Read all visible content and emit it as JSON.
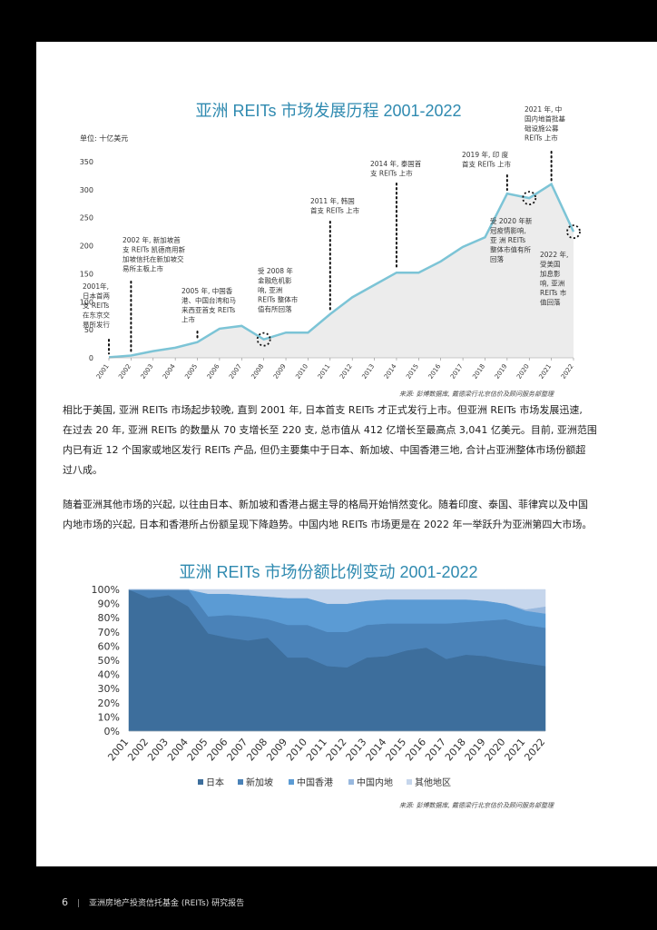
{
  "chart_data": [
    {
      "type": "area",
      "title": "亚洲 REITs 市场发展历程 2001-2022",
      "unit_label": "单位: 十亿美元",
      "x": [
        "2001",
        "2002",
        "2003",
        "2004",
        "2005",
        "2006",
        "2007",
        "2008",
        "2009",
        "2010",
        "2011",
        "2012",
        "2013",
        "2014",
        "2015",
        "2016",
        "2017",
        "2018",
        "2019",
        "2020",
        "2021",
        "2022"
      ],
      "values": [
        1,
        4,
        12,
        18,
        28,
        52,
        57,
        33,
        45,
        45,
        78,
        108,
        130,
        152,
        152,
        172,
        198,
        215,
        293,
        285,
        310,
        225
      ],
      "ylim": [
        0,
        350
      ],
      "yticks": [
        0,
        50,
        100,
        150,
        200,
        250,
        300,
        350
      ],
      "annotations": [
        {
          "year": "2001",
          "lines": [
            "2001年,",
            "日本首两",
            "支 REITs",
            "在东京交",
            "易所发行"
          ]
        },
        {
          "year": "2002",
          "lines": [
            "2002 年, 新加坡首",
            "支 REITs 凯德商用新",
            "加坡信托在新加坡交",
            "易所主板上市"
          ]
        },
        {
          "year": "2005",
          "lines": [
            "2005 年, 中国香",
            "港、中国台湾和马",
            "来西亚首支 REITs",
            "上市"
          ]
        },
        {
          "year": "2008",
          "lines": [
            "受 2008 年",
            "金融危机影",
            "响, 亚洲",
            "REITs 整体市",
            "值有所回落"
          ]
        },
        {
          "year": "2011",
          "lines": [
            "2011 年, 韩国",
            "首支 REITs 上市"
          ]
        },
        {
          "year": "2014",
          "lines": [
            "2014 年, 泰国首",
            "支 REITs 上市"
          ]
        },
        {
          "year": "2019",
          "lines": [
            "2019 年, 印 度",
            "首支 REITs 上市"
          ]
        },
        {
          "year": "2020",
          "lines": [
            "受 2020 年新",
            "冠疫情影响,",
            "亚 洲 REITs",
            "整体市值有所",
            "回落"
          ]
        },
        {
          "year": "2021",
          "lines": [
            "2021 年, 中",
            "国内地首批基",
            "础设施公募",
            "REITs 上市"
          ]
        },
        {
          "year": "2022",
          "lines": [
            "2022 年,",
            "受美国",
            "加息影",
            "响, 亚洲",
            "REITs 市",
            "值回落"
          ]
        }
      ],
      "source": "来源: 彭博数据库, 戴德梁行北京估价及顾问服务部整理",
      "colors": {
        "fill": "#ececec",
        "line": "#7cc4d6",
        "title": "#2f8ab0"
      }
    },
    {
      "type": "area",
      "stacked": true,
      "title": "亚洲 REITs 市场份额比例变动 2001-2022",
      "x": [
        "2001",
        "2002",
        "2003",
        "2004",
        "2005",
        "2006",
        "2007",
        "2008",
        "2009",
        "2010",
        "2011",
        "2012",
        "2013",
        "2014",
        "2015",
        "2016",
        "2017",
        "2018",
        "2019",
        "2020",
        "2021",
        "2022"
      ],
      "ylim": [
        0,
        100
      ],
      "yticks": [
        "0%",
        "10%",
        "20%",
        "30%",
        "40%",
        "50%",
        "60%",
        "70%",
        "80%",
        "90%",
        "100%"
      ],
      "series": [
        {
          "name": "日本",
          "color": "#3d6e9c",
          "values": [
            100,
            94,
            96,
            88,
            69,
            66,
            64,
            66,
            52,
            52,
            46,
            45,
            52,
            53,
            57,
            59,
            51,
            54,
            53,
            50,
            48,
            46
          ]
        },
        {
          "name": "新加坡",
          "color": "#4a82b8",
          "values": [
            0,
            6,
            4,
            12,
            12,
            16,
            17,
            13,
            23,
            23,
            24,
            25,
            23,
            23,
            19,
            17,
            25,
            23,
            25,
            29,
            27,
            27
          ]
        },
        {
          "name": "中国香港",
          "color": "#5b9bd4",
          "values": [
            0,
            0,
            0,
            0,
            16,
            15,
            15,
            16,
            19,
            19,
            20,
            20,
            17,
            17,
            17,
            17,
            17,
            16,
            14,
            11,
            10,
            10
          ]
        },
        {
          "name": "中国内地",
          "color": "#98b8de",
          "values": [
            0,
            0,
            0,
            0,
            0,
            0,
            0,
            0,
            0,
            0,
            0,
            0,
            0,
            0,
            0,
            0,
            0,
            0,
            0,
            0,
            1,
            5
          ]
        },
        {
          "name": "其他地区",
          "color": "#c6d6ec",
          "values": [
            0,
            0,
            0,
            0,
            3,
            3,
            4,
            5,
            6,
            6,
            10,
            10,
            8,
            7,
            7,
            7,
            7,
            7,
            8,
            10,
            14,
            12
          ]
        }
      ],
      "legend": "bottom",
      "source": "来源: 彭博数据库, 戴德梁行北京估价及顾问服务部整理"
    }
  ],
  "paragraphs": [
    [
      "相比于美国, 亚洲 REITs 市场起步较晚, 直到 2001 年, 日本首支 REITs 才正式发行上市。但亚洲 REITs 市场发展迅速,",
      "在过去 20 年, 亚洲 REITs 的数量从 70 支增长至 220 支, 总市值从 412 亿增长至最高点 3,041 亿美元。目前, 亚洲范围",
      "内已有近 12 个国家或地区发行 REITs 产品, 但仍主要集中于日本、新加坡、中国香港三地, 合计占亚洲整体市场份额超",
      "过八成。"
    ],
    [
      "随着亚洲其他市场的兴起, 以往由日本、新加坡和香港占据主导的格局开始悄然变化。随着印度、泰国、菲律宾以及中国",
      "内地市场的兴起, 日本和香港所占份额呈现下降趋势。中国内地 REITs 市场更是在 2022 年一举跃升为亚洲第四大市场。"
    ]
  ],
  "footer": {
    "page_number": "6",
    "text": "亚洲房地产投资信托基金 (REITs) 研究报告"
  }
}
